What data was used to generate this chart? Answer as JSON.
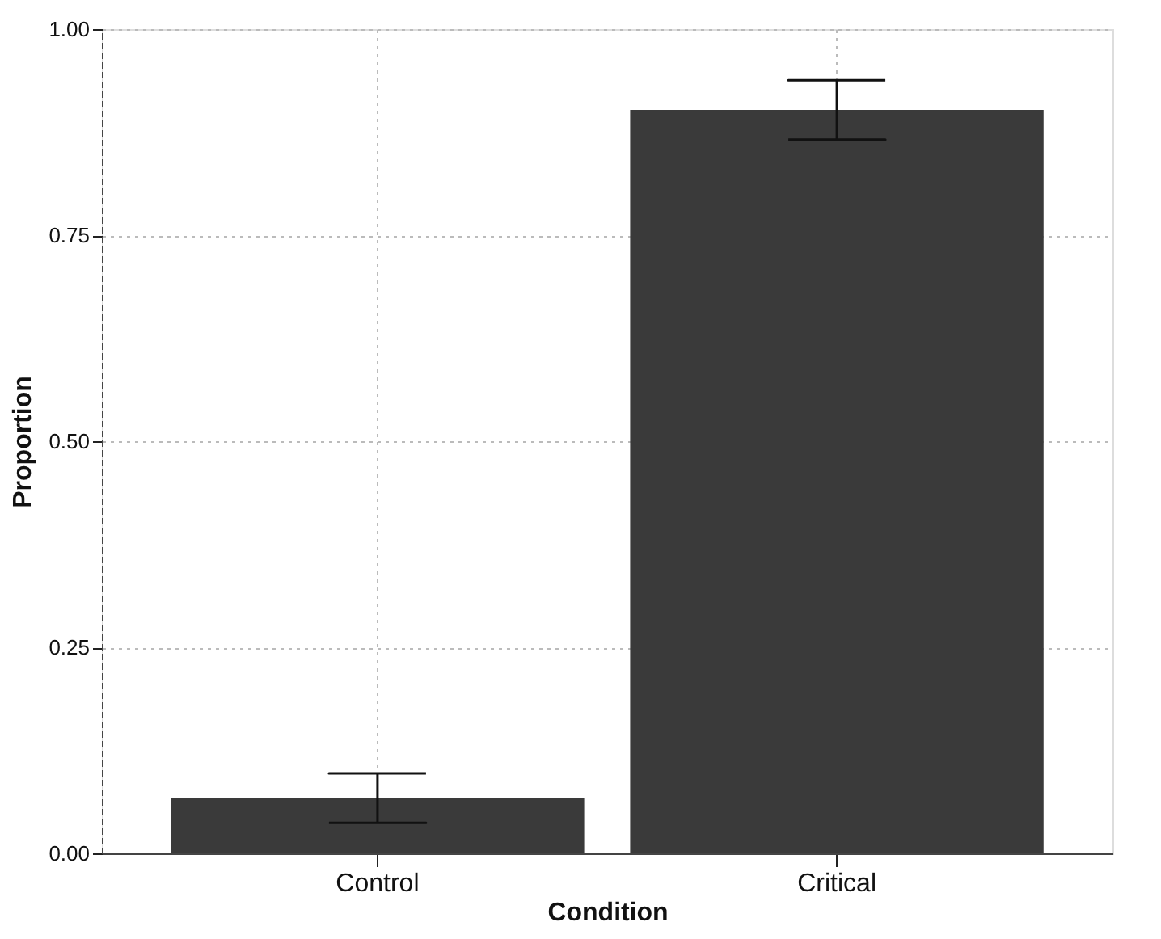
{
  "chart_data": {
    "type": "bar",
    "xlabel": "Condition",
    "ylabel": "Proportion",
    "categories": [
      "Control",
      "Critical"
    ],
    "values": [
      0.067,
      0.902
    ],
    "errors": [
      0.03,
      0.036
    ],
    "color": "#3a3a3a",
    "ylim": [
      0,
      1
    ],
    "yticks": [
      {
        "value": 0,
        "label": "0.00"
      },
      {
        "value": 0.25,
        "label": "0.25"
      },
      {
        "value": 0.5,
        "label": "0.50"
      },
      {
        "value": 0.75,
        "label": "0.75"
      },
      {
        "value": 1,
        "label": "1.00"
      }
    ],
    "grid": true
  }
}
